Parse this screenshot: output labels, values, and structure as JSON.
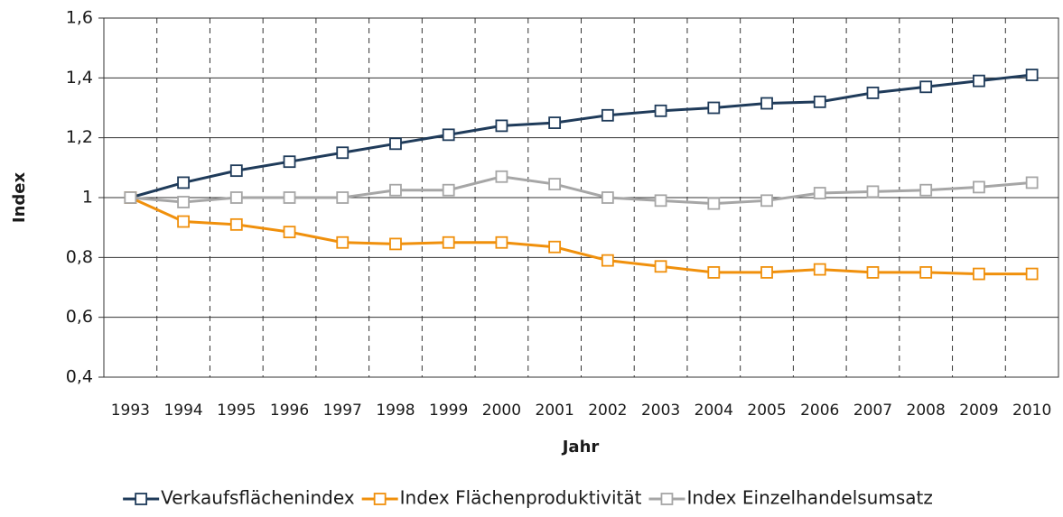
{
  "chart_data": {
    "type": "line",
    "x_label": "Jahr",
    "y_label": "Index",
    "categories": [
      "1993",
      "1994",
      "1995",
      "1996",
      "1997",
      "1998",
      "1999",
      "2000",
      "2001",
      "2002",
      "2003",
      "2004",
      "2005",
      "2006",
      "2007",
      "2008",
      "2009",
      "2010"
    ],
    "series": [
      {
        "name": "Verkaufsflächenindex",
        "color": "#1f3b5a",
        "values": [
          1.0,
          1.05,
          1.09,
          1.12,
          1.15,
          1.18,
          1.21,
          1.24,
          1.25,
          1.275,
          1.29,
          1.3,
          1.315,
          1.32,
          1.35,
          1.37,
          1.39,
          1.41
        ]
      },
      {
        "name": "Index Flächenproduktivität",
        "color": "#f0900c",
        "values": [
          1.0,
          0.92,
          0.91,
          0.885,
          0.85,
          0.845,
          0.85,
          0.85,
          0.835,
          0.79,
          0.77,
          0.75,
          0.75,
          0.76,
          0.75,
          0.75,
          0.745,
          0.745
        ]
      },
      {
        "name": "Index Einzelhandelsumsatz",
        "color": "#a6a6a6",
        "values": [
          1.0,
          0.985,
          1.0,
          1.0,
          1.0,
          1.025,
          1.025,
          1.07,
          1.045,
          1.0,
          0.99,
          0.98,
          0.99,
          1.015,
          1.02,
          1.025,
          1.035,
          1.05
        ]
      }
    ],
    "ylim": [
      0.4,
      1.6
    ],
    "yticks": [
      {
        "value": 0.4,
        "label": "0,4"
      },
      {
        "value": 0.6,
        "label": "0,6"
      },
      {
        "value": 0.8,
        "label": "0,8"
      },
      1,
      {
        "value": 1.2,
        "label": "1,2"
      },
      {
        "value": 1.4,
        "label": "1,4"
      },
      {
        "value": 1.6,
        "label": "1,6"
      }
    ],
    "grid": true,
    "legend": "bottom"
  }
}
